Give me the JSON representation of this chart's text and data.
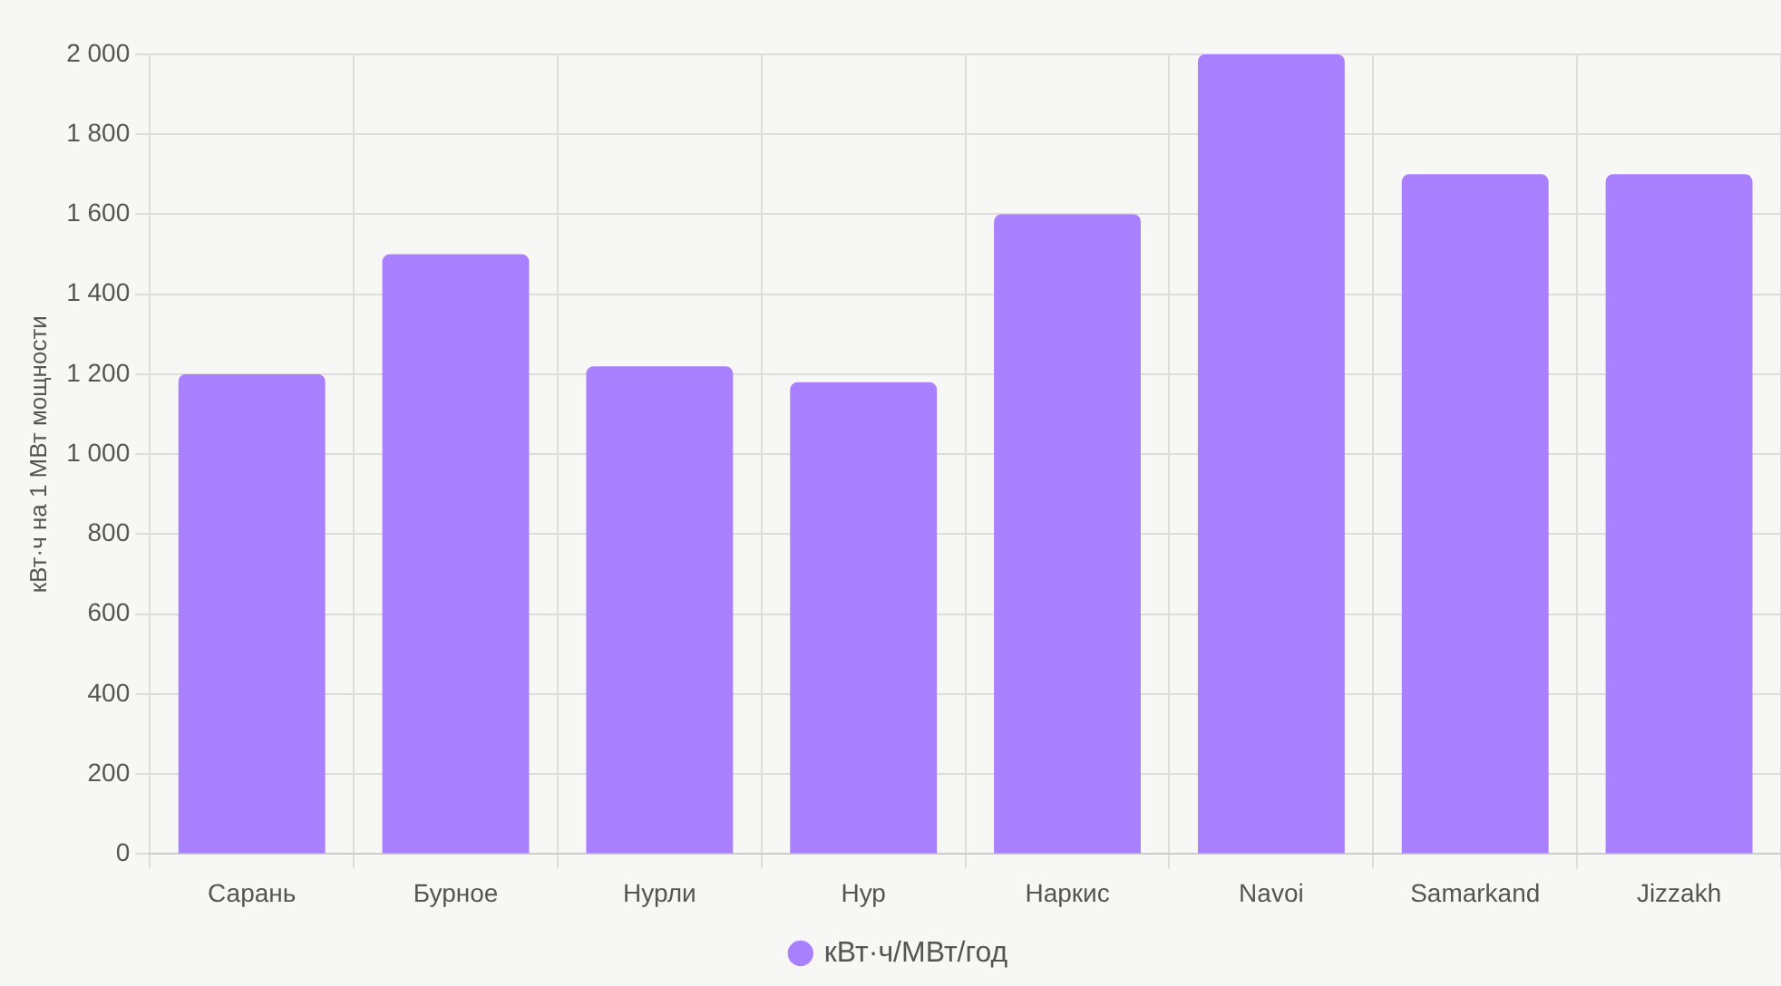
{
  "chart_data": {
    "type": "bar",
    "ylabel": "кВт·ч на 1 МВт мощности",
    "categories": [
      "Сарань",
      "Бурное",
      "Нурли",
      "Нур",
      "Наркис",
      "Navoi",
      "Samarkand",
      "Jizzakh"
    ],
    "series": [
      {
        "name": "кВт·ч/МВт/год",
        "color": "#a980ff",
        "values": [
          1200,
          1500,
          1220,
          1180,
          1600,
          2000,
          1700,
          1700
        ]
      }
    ],
    "ylim": [
      0,
      2000
    ],
    "yticks": [
      {
        "value": 0,
        "label": "0"
      },
      {
        "value": 200,
        "label": "200"
      },
      {
        "value": 400,
        "label": "400"
      },
      {
        "value": 600,
        "label": "600"
      },
      {
        "value": 800,
        "label": "800"
      },
      {
        "value": 1000,
        "label": "1 000"
      },
      {
        "value": 1200,
        "label": "1 200"
      },
      {
        "value": 1400,
        "label": "1 400"
      },
      {
        "value": 1600,
        "label": "1 600"
      },
      {
        "value": 1800,
        "label": "1 800"
      },
      {
        "value": 2000,
        "label": "2 000"
      }
    ],
    "grid": true,
    "legend": "bottom"
  }
}
